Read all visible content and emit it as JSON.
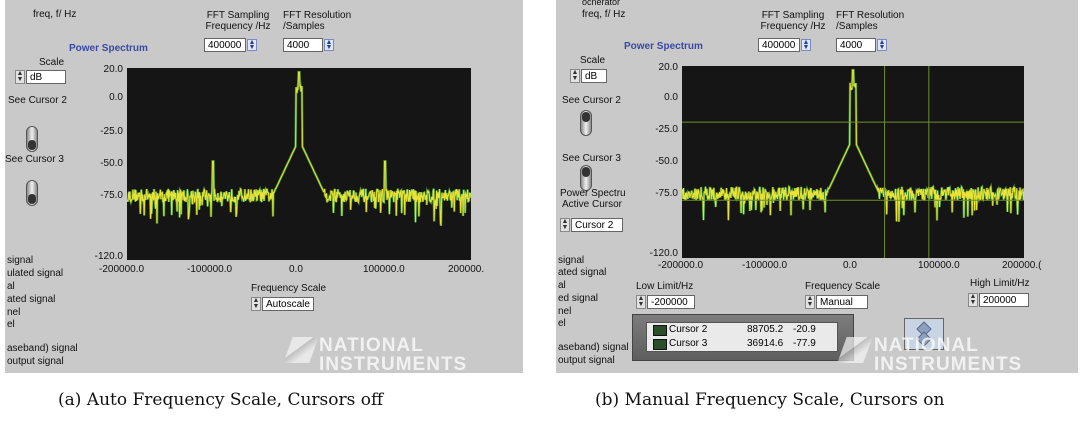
{
  "panel_a": {
    "top_left_label": "freq, f/ Hz",
    "sampling_label_1": "FFT Sampling",
    "sampling_label_2": "Frequency /Hz",
    "sampling_value": "400000",
    "resolution_label_1": "FFT Resolution",
    "resolution_label_2": "/Samples",
    "resolution_value": "4000",
    "graph_title": "Power Spectrum",
    "scale_label": "Scale",
    "scale_value": "dB",
    "see_cursor_2": "See Cursor 2",
    "see_cursor_3": "See Cursor 3",
    "y_ticks": [
      "20.0",
      "0.0",
      "-25.0",
      "-50.0",
      "-75.0",
      "-120.0"
    ],
    "x_ticks": [
      "-200000.0",
      "-100000.0",
      "0.0",
      "100000.0",
      "200000."
    ],
    "freq_scale_label": "Frequency Scale",
    "freq_scale_value": "Autoscale",
    "left_list": [
      "signal",
      "ulated signal",
      "al",
      "ated signal",
      "nel",
      "el",
      "aseband) signal",
      "output signal"
    ],
    "logo_line1": "NATIONAL",
    "logo_line2": "INSTRUMENTS",
    "caption": "(a) Auto Frequency Scale, Cursors off"
  },
  "panel_b": {
    "top_label_1": "ocnerator",
    "top_left_label": "freq, f/ Hz",
    "sampling_label_1": "FFT Sampling",
    "sampling_label_2": "Frequency /Hz",
    "sampling_value": "400000",
    "resolution_label_1": "FFT Resolution",
    "resolution_label_2": "/Samples",
    "resolution_value": "4000",
    "graph_title": "Power Spectrum",
    "scale_label": "Scale",
    "scale_value": "dB",
    "see_cursor_2": "See Cursor 2",
    "see_cursor_3": "See Cursor 3",
    "active_cursor_label_1": "Power Spectru",
    "active_cursor_label_2": "Active Cursor",
    "active_cursor_value": "Cursor 2",
    "y_ticks": [
      "20.0",
      "0.0",
      "-25.0",
      "-50.0",
      "-75.0",
      "-120.0"
    ],
    "x_ticks": [
      "-200000.0",
      "-100000.0",
      "0.0",
      "100000.0",
      "200000.("
    ],
    "low_limit_label": "Low Limit/Hz",
    "low_limit_value": "-200000",
    "freq_scale_label": "Frequency Scale",
    "freq_scale_value": "Manual",
    "high_limit_label": "High Limit/Hz",
    "high_limit_value": "200000",
    "cursors": [
      {
        "name": "Cursor 2",
        "x": "88705.2",
        "y": "-20.9"
      },
      {
        "name": "Cursor 3",
        "x": "36914.6",
        "y": "-77.9"
      }
    ],
    "left_list": [
      "signal",
      "ated signal",
      "al",
      "ed signal",
      "nel",
      "el",
      "aseband) signal",
      "output signal"
    ],
    "logo_line1": "NATIONAL",
    "logo_line2": "INSTRUMENTS",
    "caption": "(b) Manual Frequency Scale, Cursors on"
  },
  "colors": {
    "panel_bg": "#c9c9c9",
    "plot_bg": "#151515",
    "trace_yellow": "#e8e23a",
    "trace_green": "#3f8a2e",
    "cursor_line": "#6f8f2c",
    "title_blue": "#3949a6"
  }
}
